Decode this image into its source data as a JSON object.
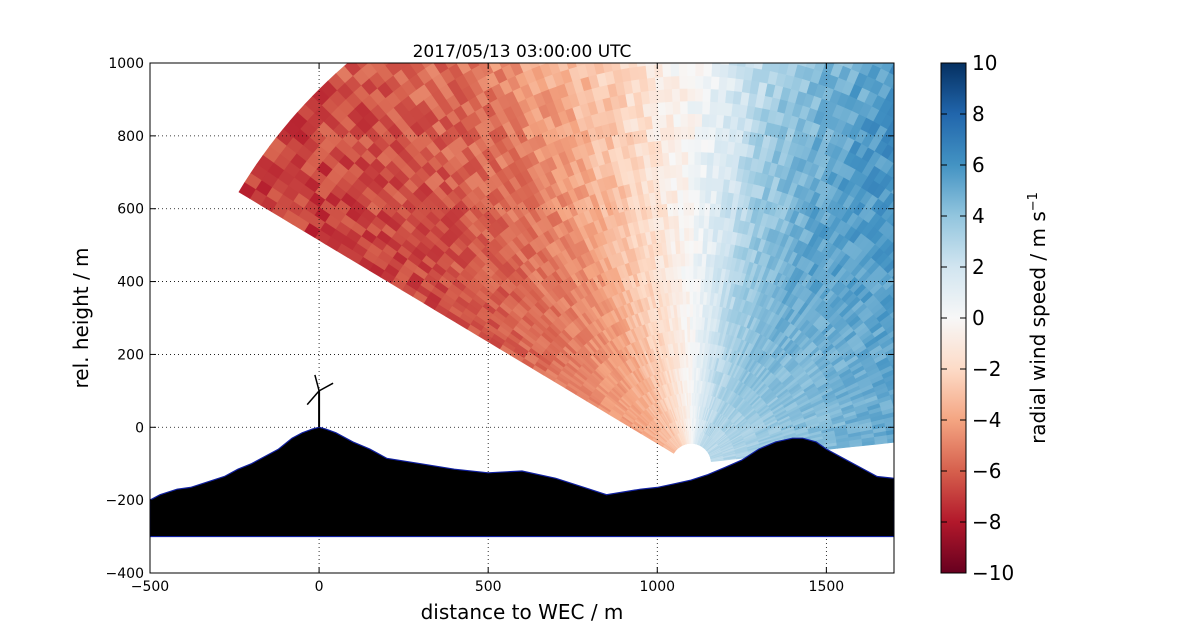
{
  "chart_data": {
    "type": "heatmap",
    "title": "2017/05/13 03:00:00 UTC",
    "xlabel": "distance to WEC / m",
    "ylabel": "rel. height / m",
    "xlim": [
      -500,
      1700
    ],
    "ylim": [
      -400,
      1000
    ],
    "xticks": [
      "−500",
      "0",
      "500",
      "1000",
      "1500"
    ],
    "yticks": [
      "−400",
      "−200",
      "0",
      "200",
      "400",
      "600",
      "800",
      "1000"
    ],
    "grid": true,
    "colorbar": {
      "label": "radial wind speed / m s",
      "label_exponent": "−1",
      "range": [
        -10,
        10
      ],
      "cmap": "RdBu",
      "ticks": [
        "−10",
        "−8",
        "−6",
        "−4",
        "−2",
        "0",
        "2",
        "4",
        "6",
        "8",
        "10"
      ]
    },
    "scan": {
      "lidar_x": 1100,
      "lidar_y": -100,
      "radius_max": 1560,
      "elevation_min_deg": 6,
      "elevation_max_deg": 149,
      "radial_speed": [
        {
          "elevation_deg": 60,
          "value": 6
        },
        {
          "elevation_deg": 75,
          "value": 4
        },
        {
          "elevation_deg": 90,
          "value": 0
        },
        {
          "elevation_deg": 105,
          "value": -3
        },
        {
          "elevation_deg": 120,
          "value": -5.5
        },
        {
          "elevation_deg": 135,
          "value": -6.5
        },
        {
          "elevation_deg": 149,
          "value": -7
        }
      ]
    },
    "turbine": {
      "x": 0,
      "hub_height": 100
    },
    "terrain": {
      "x": [
        -500,
        -470,
        -420,
        -380,
        -330,
        -280,
        -240,
        -200,
        -160,
        -120,
        -80,
        -50,
        -20,
        0,
        20,
        50,
        100,
        150,
        200,
        300,
        400,
        500,
        600,
        700,
        800,
        850,
        950,
        1000,
        1050,
        1100,
        1150,
        1200,
        1250,
        1300,
        1350,
        1400,
        1430,
        1470,
        1500,
        1550,
        1600,
        1650,
        1700
      ],
      "y": [
        -200,
        -185,
        -170,
        -165,
        -150,
        -135,
        -115,
        -100,
        -80,
        -60,
        -30,
        -15,
        -5,
        0,
        -5,
        -15,
        -40,
        -60,
        -85,
        -100,
        -115,
        -125,
        -120,
        -140,
        -170,
        -185,
        -170,
        -165,
        -155,
        -145,
        -130,
        -110,
        -90,
        -60,
        -40,
        -30,
        -30,
        -40,
        -60,
        -85,
        -110,
        -135,
        -140
      ],
      "base": -300
    }
  }
}
